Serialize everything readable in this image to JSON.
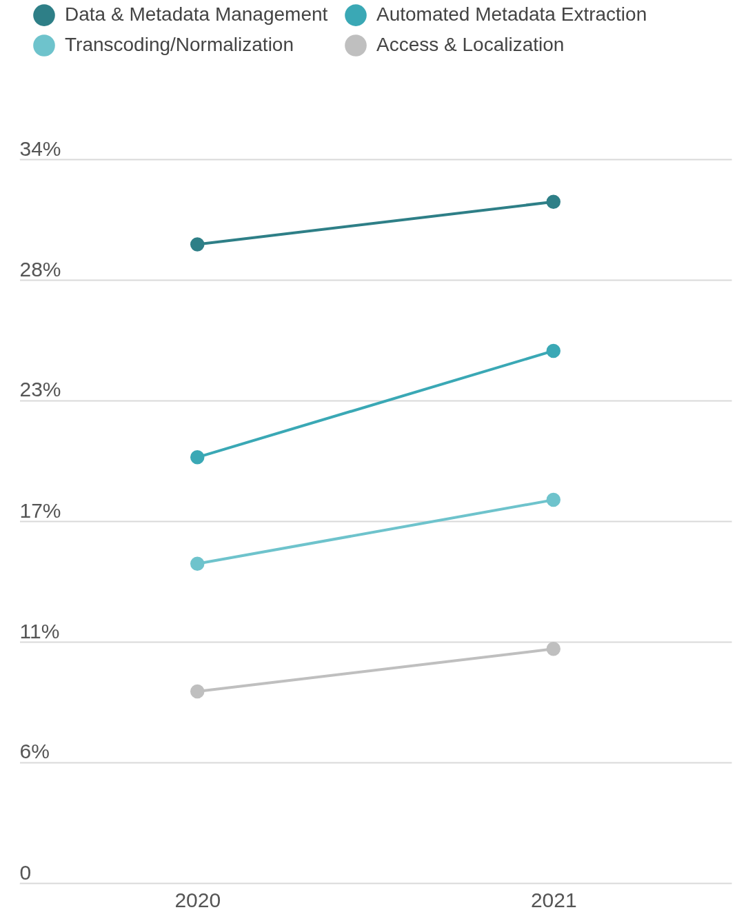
{
  "chart_data": {
    "type": "line",
    "categories": [
      "2020",
      "2021"
    ],
    "series": [
      {
        "name": "Data & Metadata Management",
        "color": "#2e7f87",
        "values": [
          30,
          32
        ]
      },
      {
        "name": "Automated Metadata Extraction",
        "color": "#3aa8b5",
        "values": [
          20,
          25
        ]
      },
      {
        "name": "Transcoding/Normalization",
        "color": "#6ec3cc",
        "values": [
          15,
          18
        ]
      },
      {
        "name": "Access & Localization",
        "color": "#bfbfbf",
        "values": [
          9,
          11
        ]
      }
    ],
    "ylim": [
      0,
      34
    ],
    "yticks": [
      {
        "value": 0,
        "label": "0"
      },
      {
        "value": 5.667,
        "label": "6%"
      },
      {
        "value": 11.333,
        "label": "11%"
      },
      {
        "value": 17,
        "label": "17%"
      },
      {
        "value": 22.667,
        "label": "23%"
      },
      {
        "value": 28.333,
        "label": "28%"
      },
      {
        "value": 34,
        "label": "34%"
      }
    ],
    "grid": "y",
    "legend": "top",
    "marker": "circle"
  }
}
